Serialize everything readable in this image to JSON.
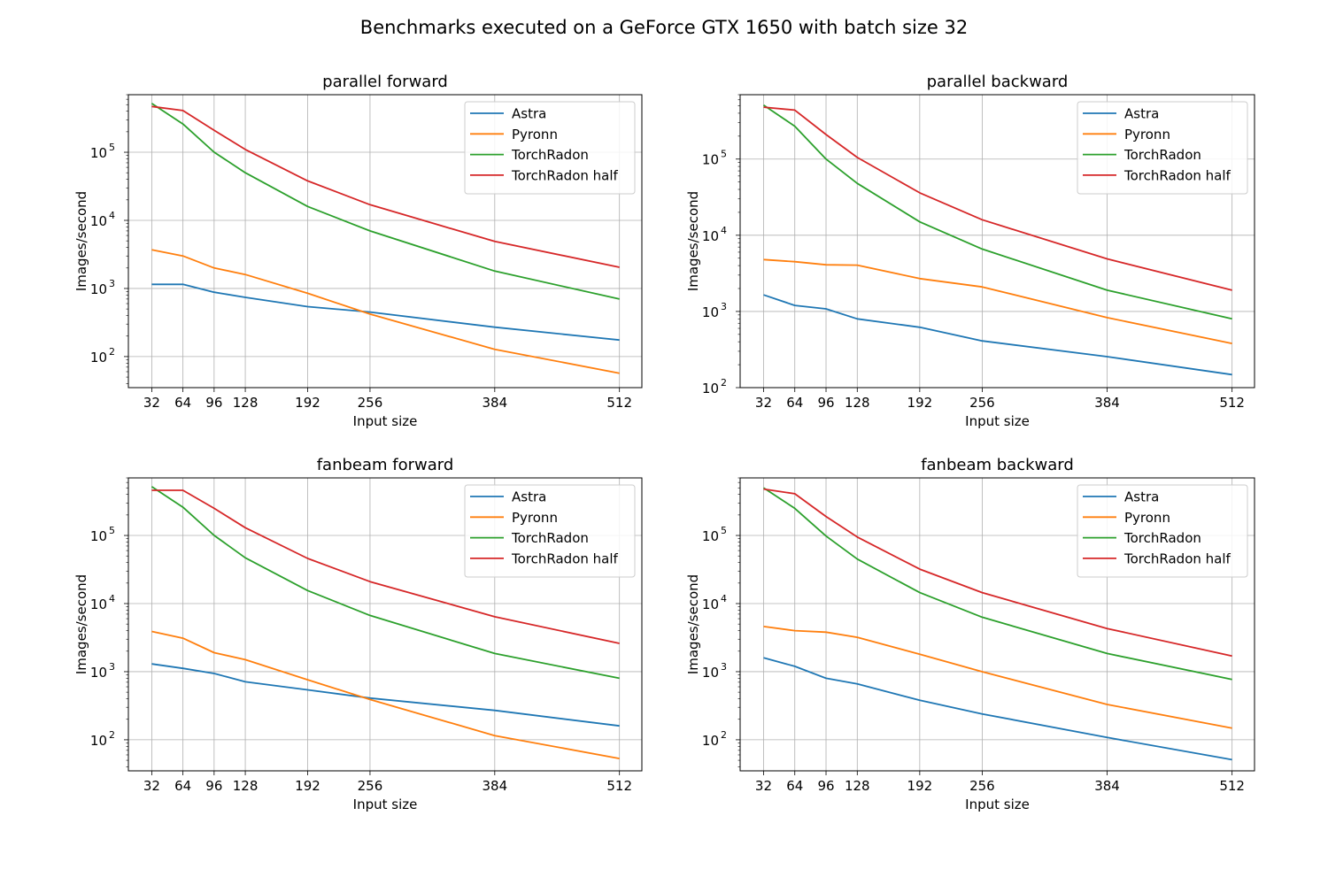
{
  "figure": {
    "suptitle": "Benchmarks executed on a GeForce GTX 1650 with batch size 32"
  },
  "series_colors": {
    "Astra": "#1f77b4",
    "Pyronn": "#ff7f0e",
    "TorchRadon": "#2ca02c",
    "TorchRadon half": "#d62728"
  },
  "chart_data": [
    {
      "type": "line",
      "title": "parallel forward",
      "xlabel": "Input size",
      "ylabel": "Images/second",
      "y_scale": "log",
      "grid": true,
      "legend_position": "upper right",
      "x": [
        32,
        64,
        96,
        128,
        192,
        256,
        384,
        512
      ],
      "xticks": [
        "32",
        "64",
        "96",
        "128",
        "192",
        "256",
        "384",
        "512"
      ],
      "yticks": [
        {
          "value": 100,
          "base": "10",
          "exp": "2"
        },
        {
          "value": 1000,
          "base": "10",
          "exp": "3"
        },
        {
          "value": 10000,
          "base": "10",
          "exp": "4"
        },
        {
          "value": 100000,
          "base": "10",
          "exp": "5"
        }
      ],
      "xlim": [
        8,
        535
      ],
      "ylim": [
        35,
        700000
      ],
      "series": [
        {
          "name": "Astra",
          "values": [
            1150,
            1150,
            880,
            740,
            540,
            450,
            270,
            175
          ]
        },
        {
          "name": "Pyronn",
          "values": [
            3700,
            3000,
            2000,
            1600,
            850,
            420,
            128,
            57
          ]
        },
        {
          "name": "TorchRadon",
          "values": [
            520000,
            260000,
            100000,
            50000,
            16000,
            7000,
            1800,
            700
          ]
        },
        {
          "name": "TorchRadon half",
          "values": [
            470000,
            410000,
            210000,
            110000,
            38000,
            17000,
            4900,
            2050
          ]
        }
      ]
    },
    {
      "type": "line",
      "title": "parallel backward",
      "xlabel": "Input size",
      "ylabel": "Images/second",
      "y_scale": "log",
      "grid": true,
      "legend_position": "upper right",
      "x": [
        32,
        64,
        96,
        128,
        192,
        256,
        384,
        512
      ],
      "xticks": [
        "32",
        "64",
        "96",
        "128",
        "192",
        "256",
        "384",
        "512"
      ],
      "yticks": [
        {
          "value": 100,
          "base": "10",
          "exp": "2"
        },
        {
          "value": 1000,
          "base": "10",
          "exp": "3"
        },
        {
          "value": 10000,
          "base": "10",
          "exp": "4"
        },
        {
          "value": 100000,
          "base": "10",
          "exp": "5"
        }
      ],
      "xlim": [
        8,
        535
      ],
      "ylim": [
        100,
        700000
      ],
      "series": [
        {
          "name": "Astra",
          "values": [
            1650,
            1200,
            1080,
            800,
            620,
            410,
            255,
            148
          ]
        },
        {
          "name": "Pyronn",
          "values": [
            4800,
            4500,
            4100,
            4050,
            2700,
            2100,
            830,
            380
          ]
        },
        {
          "name": "TorchRadon",
          "values": [
            510000,
            270000,
            100000,
            48000,
            15000,
            6600,
            1900,
            800
          ]
        },
        {
          "name": "TorchRadon half",
          "values": [
            480000,
            440000,
            210000,
            105000,
            36000,
            16000,
            4900,
            1900
          ]
        }
      ]
    },
    {
      "type": "line",
      "title": "fanbeam forward",
      "xlabel": "Input size",
      "ylabel": "Images/second",
      "y_scale": "log",
      "grid": true,
      "legend_position": "upper right",
      "x": [
        32,
        64,
        96,
        128,
        192,
        256,
        384,
        512
      ],
      "xticks": [
        "32",
        "64",
        "96",
        "128",
        "192",
        "256",
        "384",
        "512"
      ],
      "yticks": [
        {
          "value": 100,
          "base": "10",
          "exp": "2"
        },
        {
          "value": 1000,
          "base": "10",
          "exp": "3"
        },
        {
          "value": 10000,
          "base": "10",
          "exp": "4"
        },
        {
          "value": 100000,
          "base": "10",
          "exp": "5"
        }
      ],
      "xlim": [
        8,
        535
      ],
      "ylim": [
        35,
        700000
      ],
      "series": [
        {
          "name": "Astra",
          "values": [
            1300,
            1120,
            940,
            710,
            540,
            410,
            270,
            160
          ]
        },
        {
          "name": "Pyronn",
          "values": [
            3900,
            3100,
            1900,
            1500,
            760,
            390,
            115,
            53
          ]
        },
        {
          "name": "TorchRadon",
          "values": [
            520000,
            260000,
            100000,
            47000,
            15500,
            6700,
            1850,
            800
          ]
        },
        {
          "name": "TorchRadon half",
          "values": [
            460000,
            460000,
            250000,
            130000,
            46000,
            21000,
            6400,
            2600
          ]
        }
      ]
    },
    {
      "type": "line",
      "title": "fanbeam backward",
      "xlabel": "Input size",
      "ylabel": "Images/second",
      "y_scale": "log",
      "grid": true,
      "legend_position": "upper right",
      "x": [
        32,
        64,
        96,
        128,
        192,
        256,
        384,
        512
      ],
      "xticks": [
        "32",
        "64",
        "96",
        "128",
        "192",
        "256",
        "384",
        "512"
      ],
      "yticks": [
        {
          "value": 100,
          "base": "10",
          "exp": "2"
        },
        {
          "value": 1000,
          "base": "10",
          "exp": "3"
        },
        {
          "value": 10000,
          "base": "10",
          "exp": "4"
        },
        {
          "value": 100000,
          "base": "10",
          "exp": "5"
        }
      ],
      "xlim": [
        8,
        535
      ],
      "ylim": [
        35,
        700000
      ],
      "series": [
        {
          "name": "Astra",
          "values": [
            1600,
            1200,
            800,
            660,
            380,
            240,
            108,
            51
          ]
        },
        {
          "name": "Pyronn",
          "values": [
            4600,
            4000,
            3800,
            3200,
            1800,
            1000,
            330,
            148
          ]
        },
        {
          "name": "TorchRadon",
          "values": [
            500000,
            250000,
            98000,
            45000,
            14500,
            6300,
            1850,
            770
          ]
        },
        {
          "name": "TorchRadon half",
          "values": [
            480000,
            410000,
            190000,
            95000,
            32000,
            14500,
            4300,
            1700
          ]
        }
      ]
    }
  ]
}
